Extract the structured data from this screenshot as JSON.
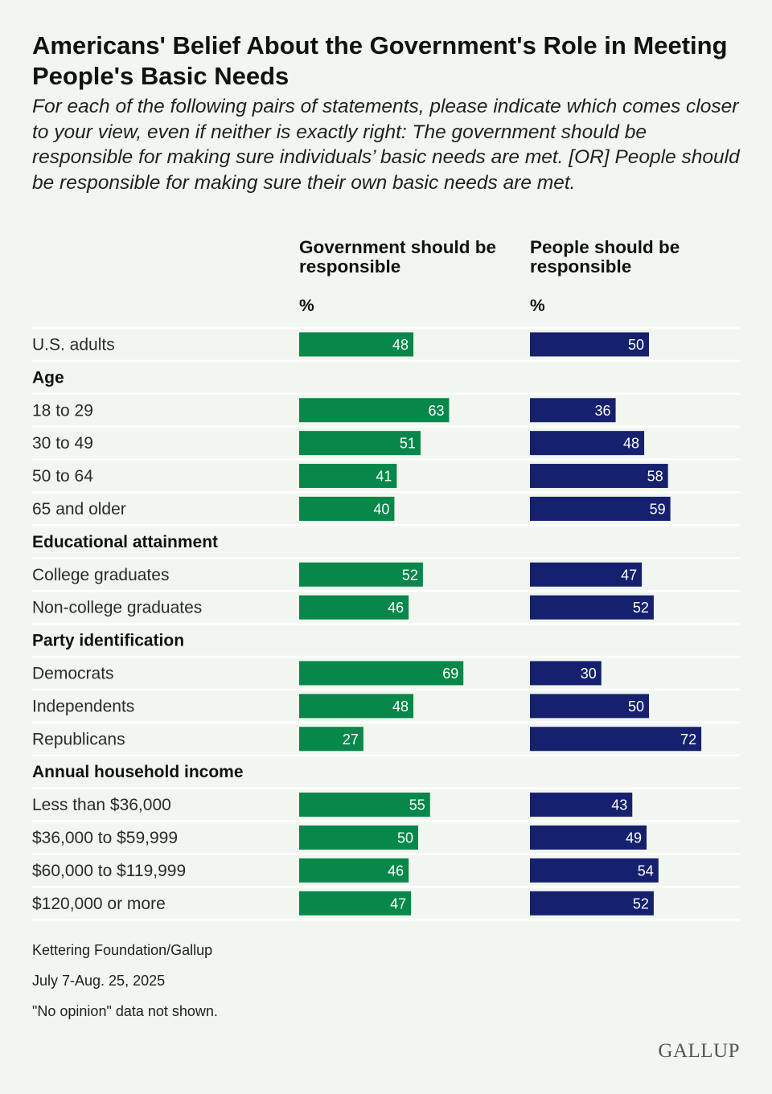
{
  "title": "Americans' Belief About the Government's Role in Meeting People's Basic Needs",
  "subtitle": "For each of the following pairs of statements, please indicate which comes closer to your view, even if neither is exactly right: The government should be responsible for making sure individuals’ basic needs are met. [OR] People should be responsible for making sure their own basic needs are met.",
  "chart_data": {
    "type": "bar",
    "orientation": "horizontal",
    "series": [
      {
        "name": "Government should be responsible",
        "unit": "%",
        "color": "#07874a"
      },
      {
        "name": "People should be responsible",
        "unit": "%",
        "color": "#15216e"
      }
    ],
    "rows": [
      {
        "kind": "data",
        "label": "U.S. adults",
        "values": [
          48,
          50
        ]
      },
      {
        "kind": "group",
        "label": "Age"
      },
      {
        "kind": "data",
        "label": "18 to 29",
        "values": [
          63,
          36
        ]
      },
      {
        "kind": "data",
        "label": "30 to 49",
        "values": [
          51,
          48
        ]
      },
      {
        "kind": "data",
        "label": "50 to 64",
        "values": [
          41,
          58
        ]
      },
      {
        "kind": "data",
        "label": "65 and older",
        "values": [
          40,
          59
        ]
      },
      {
        "kind": "group",
        "label": "Educational attainment"
      },
      {
        "kind": "data",
        "label": "College graduates",
        "values": [
          52,
          47
        ]
      },
      {
        "kind": "data",
        "label": "Non-college graduates",
        "values": [
          46,
          52
        ]
      },
      {
        "kind": "group",
        "label": "Party identification"
      },
      {
        "kind": "data",
        "label": "Democrats",
        "values": [
          69,
          30
        ]
      },
      {
        "kind": "data",
        "label": "Independents",
        "values": [
          48,
          50
        ]
      },
      {
        "kind": "data",
        "label": "Republicans",
        "values": [
          27,
          72
        ]
      },
      {
        "kind": "group",
        "label": "Annual household income"
      },
      {
        "kind": "data",
        "label": "Less than $36,000",
        "values": [
          55,
          43
        ]
      },
      {
        "kind": "data",
        "label": "$36,000 to $59,999",
        "values": [
          50,
          49
        ]
      },
      {
        "kind": "data",
        "label": "$60,000 to $119,999",
        "values": [
          46,
          54
        ]
      },
      {
        "kind": "data",
        "label": "$120,000 or more",
        "values": [
          47,
          52
        ]
      }
    ]
  },
  "footer": {
    "source": "Kettering Foundation/Gallup",
    "dates": "July 7-Aug. 25, 2025",
    "note": "\"No opinion\" data not shown."
  },
  "logo": "GALLUP"
}
